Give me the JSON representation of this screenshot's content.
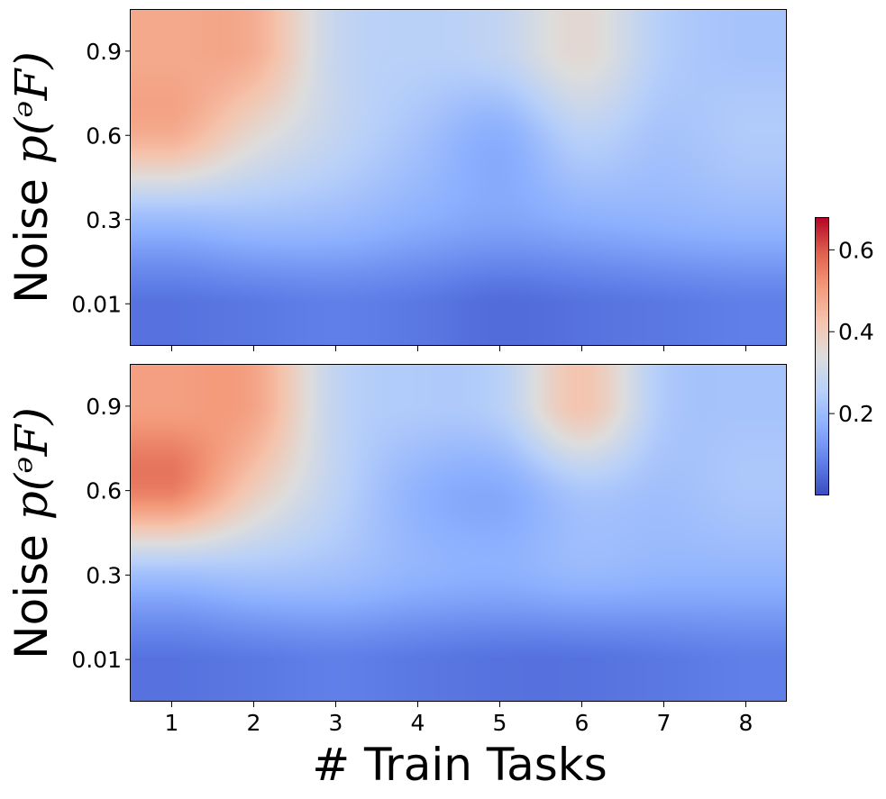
{
  "chart_data": [
    {
      "type": "heatmap",
      "panel": "top",
      "xlabel": "",
      "ylabel_prefix": "Noise ",
      "ylabel_math": "p(ᵊF)",
      "x_ticks": [
        "1",
        "2",
        "3",
        "4",
        "5",
        "6",
        "7",
        "8"
      ],
      "y_ticks": [
        "0.01",
        "0.3",
        "0.6",
        "0.9"
      ],
      "x": [
        1,
        2,
        3,
        4,
        5,
        6,
        7,
        8
      ],
      "y": [
        "0.01",
        "0.3",
        "0.6",
        "0.9"
      ],
      "z": [
        [
          0.06,
          0.07,
          0.08,
          0.07,
          0.05,
          0.06,
          0.07,
          0.08
        ],
        [
          0.2,
          0.21,
          0.2,
          0.17,
          0.15,
          0.17,
          0.18,
          0.19
        ],
        [
          0.47,
          0.36,
          0.28,
          0.22,
          0.17,
          0.26,
          0.22,
          0.24
        ],
        [
          0.48,
          0.47,
          0.29,
          0.26,
          0.28,
          0.36,
          0.25,
          0.22
        ]
      ],
      "colormap": "coolwarm",
      "interpolation": "bicubic"
    },
    {
      "type": "heatmap",
      "panel": "bottom",
      "xlabel": "# Train Tasks",
      "ylabel_prefix": "Noise ",
      "ylabel_math": "p(ᵊF)",
      "x_ticks": [
        "1",
        "2",
        "3",
        "4",
        "5",
        "6",
        "7",
        "8"
      ],
      "y_ticks": [
        "0.01",
        "0.3",
        "0.6",
        "0.9"
      ],
      "x": [
        1,
        2,
        3,
        4,
        5,
        6,
        7,
        8
      ],
      "y": [
        "0.01",
        "0.3",
        "0.6",
        "0.9"
      ],
      "z": [
        [
          0.06,
          0.07,
          0.08,
          0.07,
          0.06,
          0.06,
          0.07,
          0.08
        ],
        [
          0.21,
          0.22,
          0.21,
          0.18,
          0.17,
          0.19,
          0.18,
          0.18
        ],
        [
          0.55,
          0.4,
          0.27,
          0.18,
          0.16,
          0.23,
          0.21,
          0.23
        ],
        [
          0.5,
          0.49,
          0.28,
          0.24,
          0.26,
          0.42,
          0.24,
          0.22
        ]
      ],
      "colormap": "coolwarm",
      "interpolation": "bicubic"
    }
  ],
  "colorbar": {
    "ticks": [
      "0.2",
      "0.4",
      "0.6"
    ],
    "tick_values": [
      0.2,
      0.4,
      0.6
    ],
    "vmin": 0.0,
    "vmax": 0.68,
    "colormap": "coolwarm"
  }
}
